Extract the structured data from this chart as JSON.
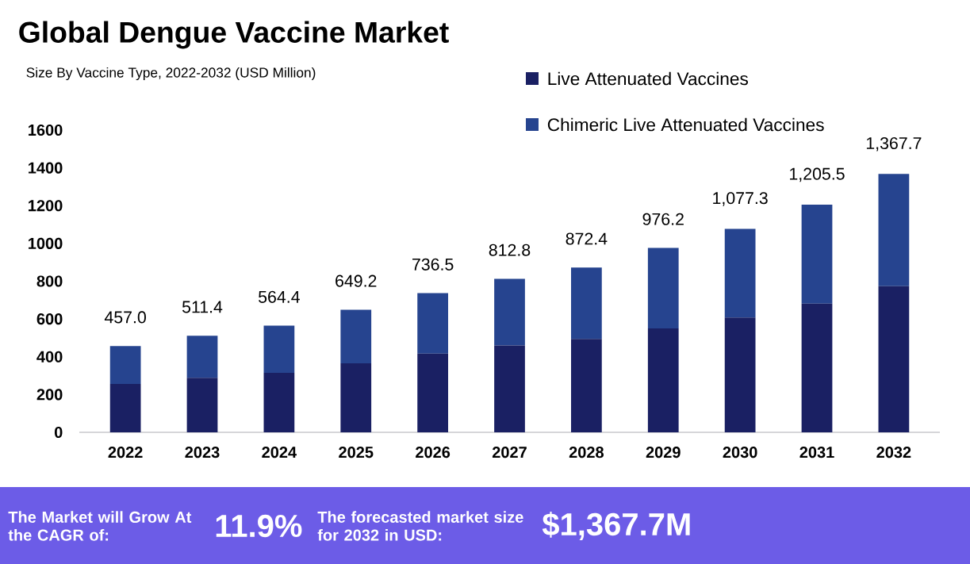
{
  "chart_data": {
    "type": "bar",
    "title": "Global Dengue Vaccine Market",
    "subtitle": "Size By Vaccine Type, 2022-2032 (USD Million)",
    "categories": [
      "2022",
      "2023",
      "2024",
      "2025",
      "2026",
      "2027",
      "2028",
      "2029",
      "2030",
      "2031",
      "2032"
    ],
    "stacked": true,
    "series": [
      {
        "name": "Live Attenuated Vaccines",
        "color": "#1a2063",
        "values": [
          256.1,
          288.6,
          315.4,
          365.2,
          417.2,
          459.4,
          494.4,
          550.4,
          608.3,
          681.6,
          773.7
        ]
      },
      {
        "name": "Chimeric Live Attenuated Vaccines",
        "color": "#26448f",
        "values": [
          200.9,
          222.8,
          249.0,
          284.0,
          319.3,
          353.4,
          378.0,
          425.8,
          469.0,
          523.9,
          594.0
        ]
      }
    ],
    "totals": [
      "457.0",
      "511.4",
      "564.4",
      "649.2",
      "736.5",
      "812.8",
      "872.4",
      "976.2",
      "1,077.3",
      "1,205.5",
      "1,367.7"
    ],
    "ylim": [
      0,
      1600
    ],
    "yticks": [
      0,
      200,
      400,
      600,
      800,
      1000,
      1200,
      1400,
      1600
    ],
    "grid": false,
    "legend": "top right",
    "annotations": [
      "The Market will Grow At the CAGR of:",
      "11.9%",
      "The forecasted market size for 2032 in USD:",
      "$1,367.7M"
    ]
  }
}
